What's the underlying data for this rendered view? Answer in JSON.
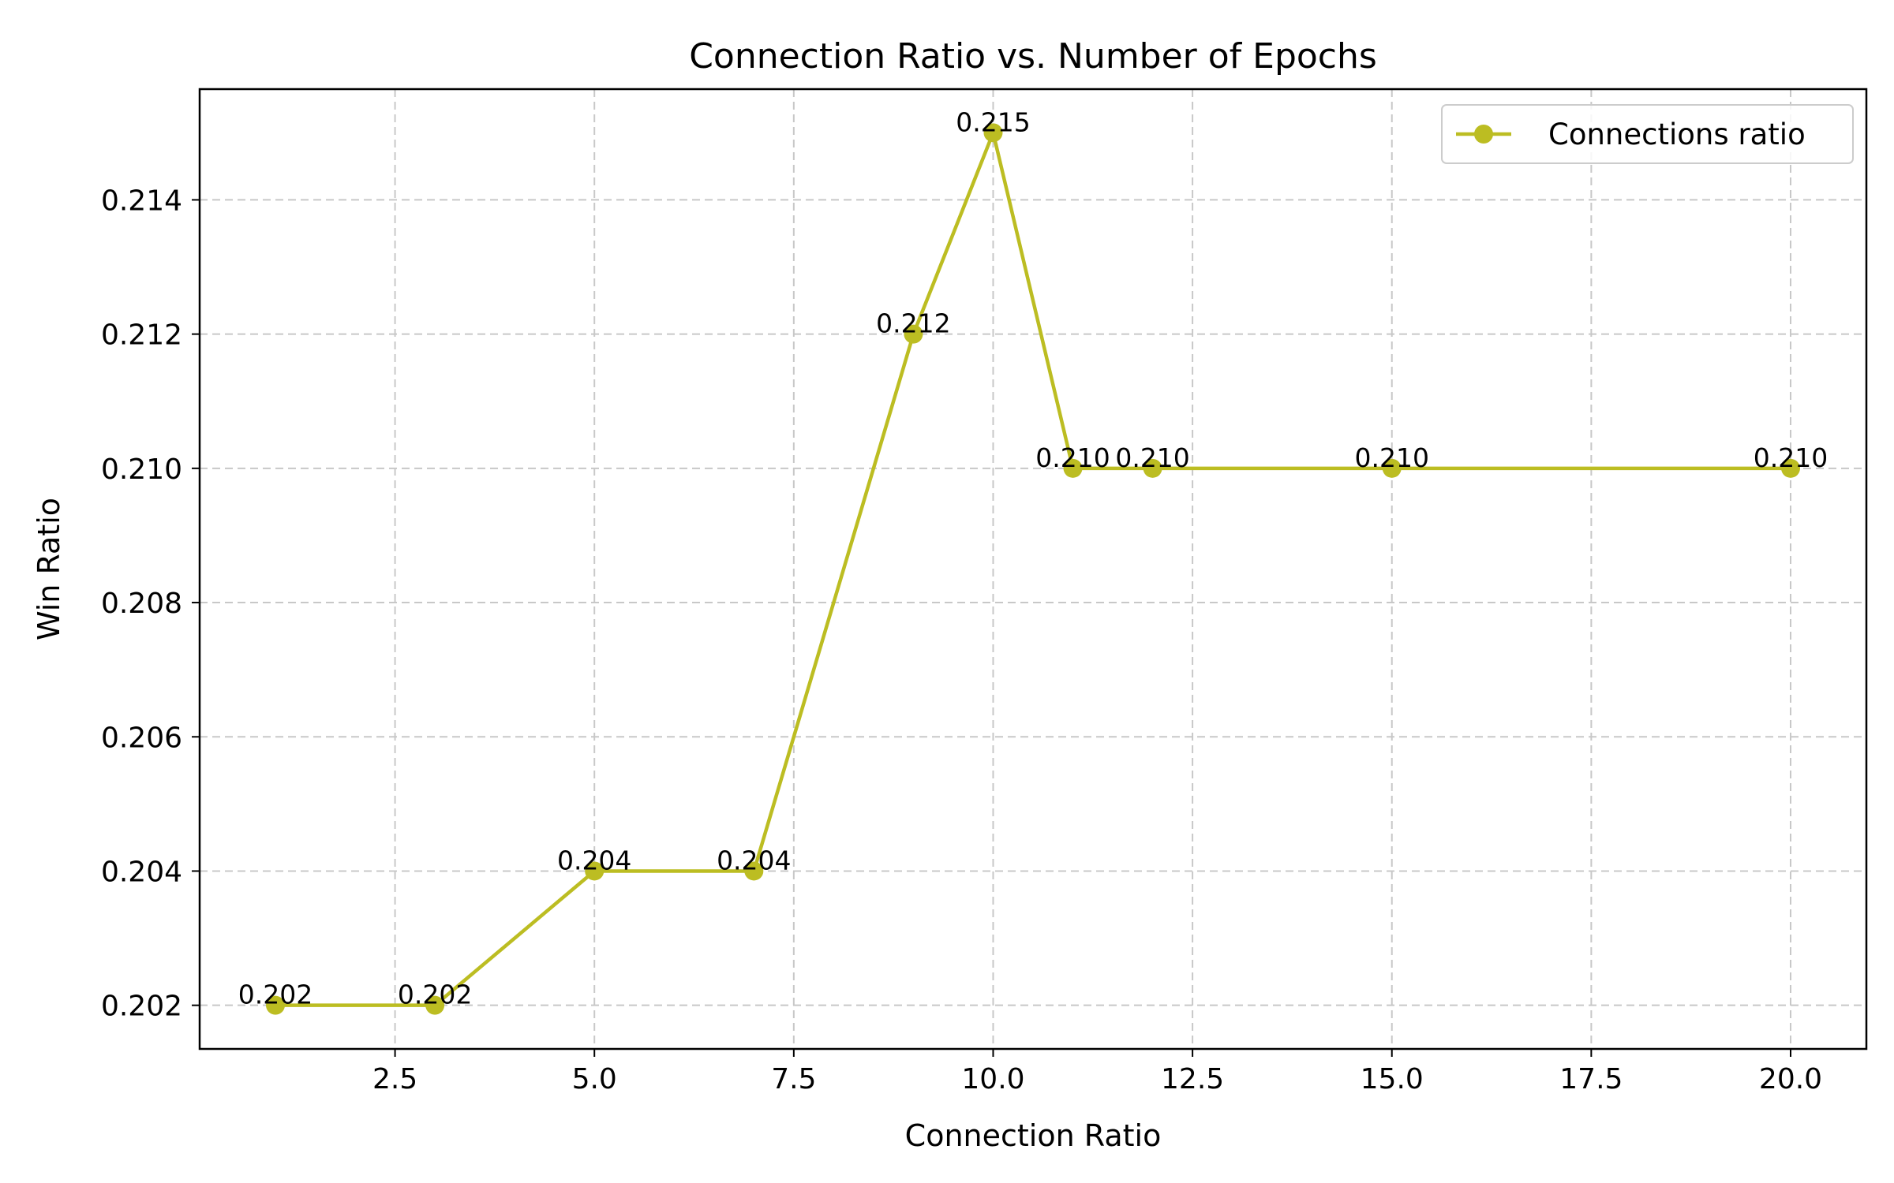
{
  "chart_data": {
    "type": "line",
    "title": "Connection Ratio vs. Number of Epochs",
    "xlabel": "Connection Ratio",
    "ylabel": "Win Ratio",
    "xlim": [
      0.05,
      20.95
    ],
    "ylim": [
      0.20135,
      0.21565
    ],
    "xticks": [
      2.5,
      5.0,
      7.5,
      10.0,
      12.5,
      15.0,
      17.5,
      20.0
    ],
    "xtick_labels": [
      "2.5",
      "5.0",
      "7.5",
      "10.0",
      "12.5",
      "15.0",
      "17.5",
      "20.0"
    ],
    "yticks": [
      0.202,
      0.204,
      0.206,
      0.208,
      0.21,
      0.212,
      0.214
    ],
    "ytick_labels": [
      "0.202",
      "0.204",
      "0.206",
      "0.208",
      "0.210",
      "0.212",
      "0.214"
    ],
    "grid": true,
    "legend_position": "top-right",
    "series": [
      {
        "name": "Connections ratio",
        "color": "#bcbd22",
        "x": [
          1,
          3,
          5,
          7,
          9,
          10,
          11,
          12,
          15,
          20
        ],
        "y": [
          0.202,
          0.202,
          0.204,
          0.204,
          0.212,
          0.215,
          0.21,
          0.21,
          0.21,
          0.21
        ],
        "labels": [
          "0.202",
          "0.202",
          "0.204",
          "0.204",
          "0.212",
          "0.215",
          "0.210",
          "0.210",
          "0.210",
          "0.210"
        ]
      }
    ]
  }
}
